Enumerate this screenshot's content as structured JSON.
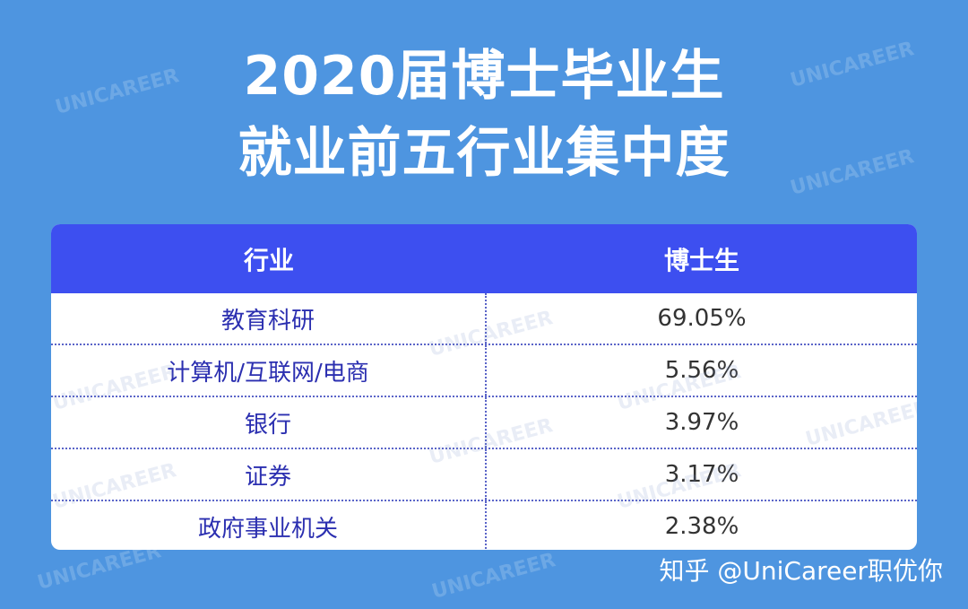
{
  "title": {
    "line1": "2020届博士毕业生",
    "line2": "就业前五行业集中度"
  },
  "table": {
    "headers": [
      "行业",
      "博士生"
    ],
    "rows": [
      {
        "industry": "教育科研",
        "value": "69.05%"
      },
      {
        "industry": "计算机/互联网/电商",
        "value": "5.56%"
      },
      {
        "industry": "银行",
        "value": "3.97%"
      },
      {
        "industry": "证券",
        "value": "3.17%"
      },
      {
        "industry": "政府事业机关",
        "value": "2.38%"
      }
    ]
  },
  "watermark": "UNICAREER",
  "footer": "知乎 @UniCareer职优你",
  "colors": {
    "background": "#4e95e0",
    "header": "#3d4ff0",
    "industry_text": "#2b2fb0"
  }
}
